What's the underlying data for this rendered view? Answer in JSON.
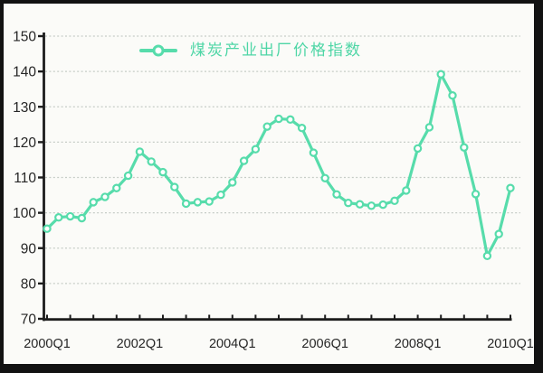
{
  "colors": {
    "line": "#57dcab",
    "marker_fill": "#ffffff",
    "legend_text": "#4fd6a6",
    "axis": "#1c1c1c",
    "grid": "#c6ccc6",
    "label_text": "#262626",
    "background": "#fbfbf8",
    "frame_border": "#121212"
  },
  "legend": {
    "label": "煤炭产业出厂价格指数"
  },
  "chart_data": {
    "type": "line",
    "title": "",
    "legend_entries": [
      "煤炭产业出厂价格指数"
    ],
    "legend_position": "top-center",
    "grid": "horizontal-dashed",
    "ylim": [
      70,
      150
    ],
    "y_ticks": [
      70,
      80,
      90,
      100,
      110,
      120,
      130,
      140,
      150
    ],
    "x_tick_labels": [
      "2000Q1",
      "2002Q1",
      "2004Q1",
      "2006Q1",
      "2008Q1",
      "2010Q1"
    ],
    "minor_x_tick_every_quarters": 2,
    "categories": [
      "2000Q1",
      "2000Q2",
      "2000Q3",
      "2000Q4",
      "2001Q1",
      "2001Q2",
      "2001Q3",
      "2001Q4",
      "2002Q1",
      "2002Q2",
      "2002Q3",
      "2002Q4",
      "2003Q1",
      "2003Q2",
      "2003Q3",
      "2003Q4",
      "2004Q1",
      "2004Q2",
      "2004Q3",
      "2004Q4",
      "2005Q1",
      "2005Q2",
      "2005Q3",
      "2005Q4",
      "2006Q1",
      "2006Q2",
      "2006Q3",
      "2006Q4",
      "2007Q1",
      "2007Q2",
      "2007Q3",
      "2007Q4",
      "2008Q1",
      "2008Q2",
      "2008Q3",
      "2008Q4",
      "2009Q1",
      "2009Q2",
      "2009Q3",
      "2009Q4",
      "2010Q1"
    ],
    "values": [
      95.5,
      98.7,
      99.0,
      98.5,
      103.0,
      104.5,
      107.0,
      110.5,
      117.3,
      114.5,
      111.5,
      107.3,
      102.6,
      103.0,
      103.2,
      105.1,
      108.6,
      114.7,
      118.0,
      124.4,
      126.6,
      126.4,
      124.0,
      117.0,
      109.8,
      105.2,
      102.8,
      102.4,
      102.0,
      102.3,
      103.4,
      106.3,
      118.2,
      124.2,
      139.2,
      133.2,
      118.5,
      105.3,
      87.8,
      94.0,
      107.0
    ]
  }
}
